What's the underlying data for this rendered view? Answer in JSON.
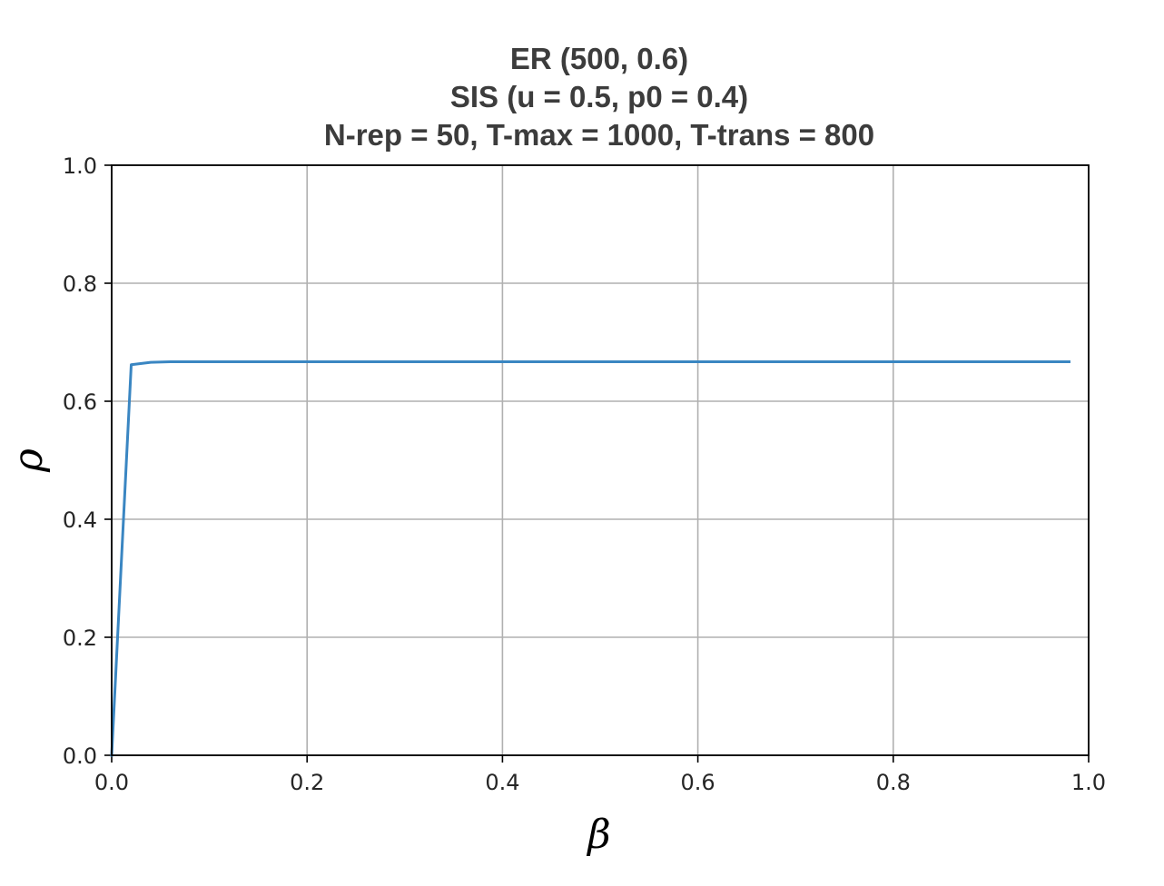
{
  "chart_data": {
    "type": "line",
    "title_lines": [
      "ER (500, 0.6)",
      "SIS (u = 0.5, p0 = 0.4)",
      "N-rep = 50, T-max = 1000, T-trans = 800"
    ],
    "xlabel": "β",
    "ylabel": "ρ",
    "xlim": [
      0.0,
      1.0
    ],
    "ylim": [
      0.0,
      1.0
    ],
    "x_ticks": [
      "0.0",
      "0.2",
      "0.4",
      "0.6",
      "0.8",
      "1.0"
    ],
    "y_ticks": [
      "0.0",
      "0.2",
      "0.4",
      "0.6",
      "0.8",
      "1.0"
    ],
    "grid": true,
    "line_color": "#3a86c2",
    "series": [
      {
        "x": [
          0.0,
          0.02,
          0.04,
          0.06,
          0.1,
          0.2,
          0.3,
          0.4,
          0.5,
          0.6,
          0.7,
          0.8,
          0.9,
          0.98
        ],
        "values": [
          0.0,
          0.662,
          0.666,
          0.667,
          0.667,
          0.667,
          0.667,
          0.667,
          0.667,
          0.667,
          0.667,
          0.667,
          0.667,
          0.667
        ]
      }
    ]
  }
}
